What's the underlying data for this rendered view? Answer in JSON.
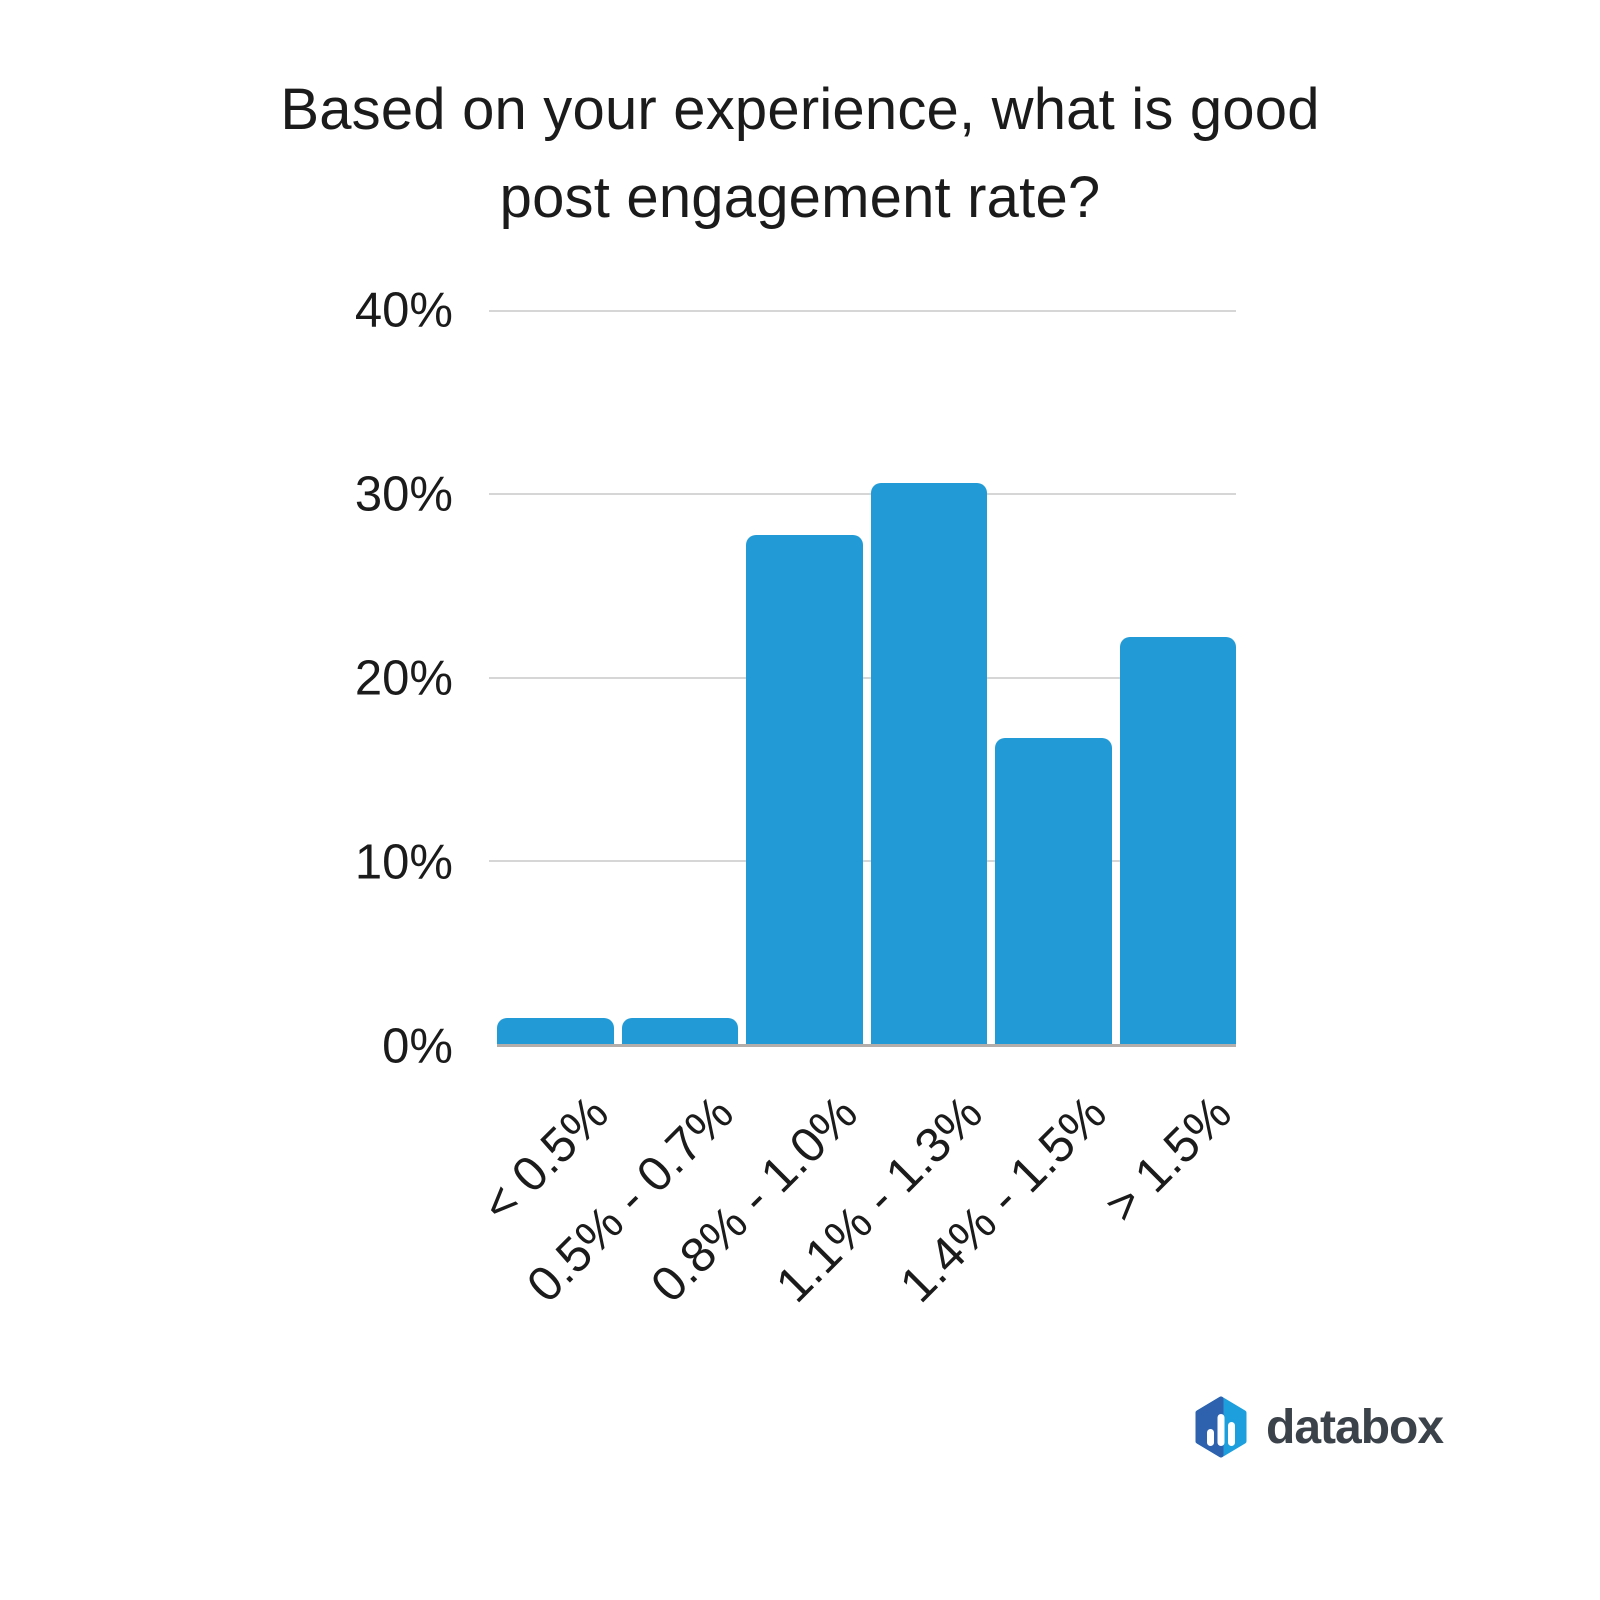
{
  "chart_data": {
    "type": "bar",
    "title": "Based on your experience, what is good post engagement rate?",
    "title_lines": [
      "Based on your experience, what is good",
      "post engagement rate?"
    ],
    "categories": [
      "< 0.5%",
      "0.5% - 0.7%",
      "0.8% - 1.0%",
      "1.1% - 1.3%",
      "1.4% - 1.5%",
      "> 1.5%"
    ],
    "values": [
      1.4,
      1.4,
      27.8,
      30.6,
      16.7,
      22.2
    ],
    "unit": "%",
    "xlabel": "",
    "ylabel": "",
    "ylim": [
      0,
      40
    ],
    "yticks": [
      0,
      10,
      20,
      30,
      40
    ],
    "ytick_labels": [
      "0%",
      "10%",
      "20%",
      "30%",
      "40%"
    ],
    "grid": "horizontal",
    "legend": "none",
    "bar_corner_radius": "rounded-top"
  },
  "colors": {
    "bar": "#219ad6",
    "gridline": "#d6d6d6",
    "axis_line": "#b3aeab",
    "text": "#1b1b1b",
    "logo_dark_blue": "#2e61ae",
    "logo_light_blue": "#1c9fdc",
    "logo_bars": "#ffffff",
    "logo_text": "#3b4249"
  },
  "brand": {
    "name": "databox",
    "logo_icon": "databox-hexagon-bar-chart-icon"
  }
}
